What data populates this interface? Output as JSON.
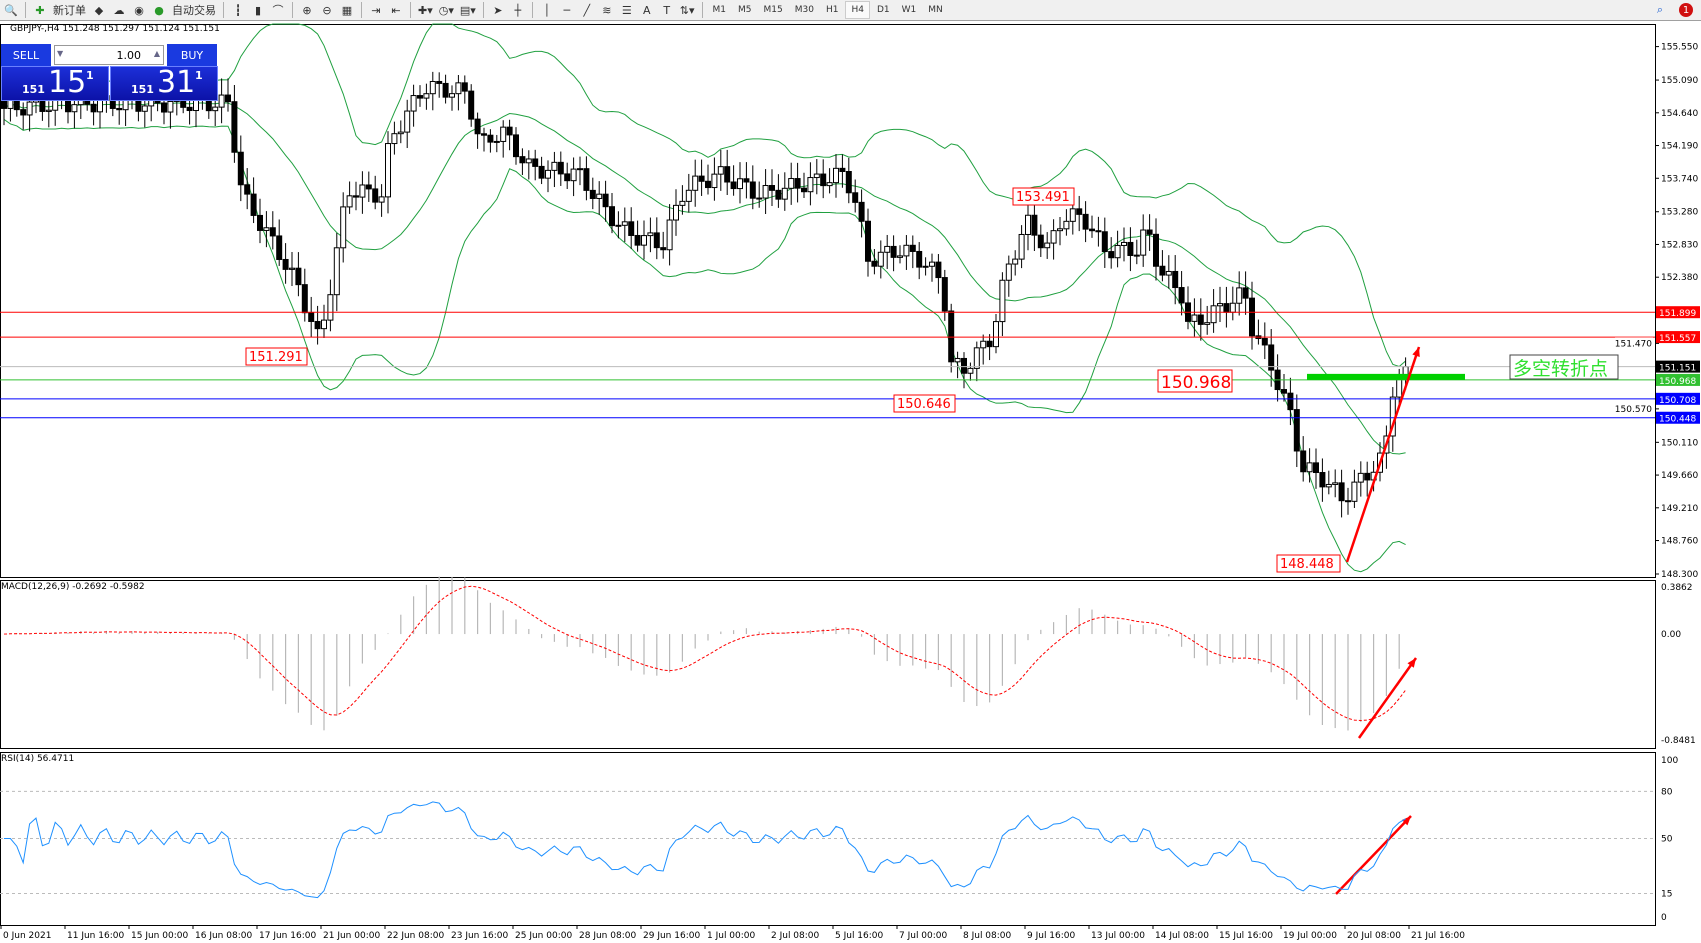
{
  "toolbar": {
    "new_order": "新订单",
    "auto_trading": "自动交易",
    "timeframes": [
      "M1",
      "M5",
      "M15",
      "M30",
      "H1",
      "H4",
      "D1",
      "W1",
      "MN"
    ],
    "active_timeframe": "H4",
    "notifications": "1",
    "icons": [
      "zoom-icon",
      "new-order-icon",
      "book-icon",
      "navigator-icon",
      "signal-icon",
      "auto-trading-icon",
      "bar-chart-icon",
      "candlestick-icon",
      "line-chart-icon",
      "zoom-in-icon",
      "zoom-out-icon",
      "tile-windows-icon",
      "chart-shift-icon",
      "autoscroll-icon",
      "indicators-icon",
      "periods-icon",
      "templates-icon",
      "cursor-icon",
      "crosshair-icon",
      "vertical-line-icon",
      "horizontal-line-icon",
      "trendline-icon",
      "fibo-icon",
      "fibo-channel-icon",
      "text-icon",
      "text-label-icon",
      "arrows-icon"
    ]
  },
  "header": {
    "symbol_line": "GBPJPY-,H4  151.248 151.297 151.124 151.151"
  },
  "trade_panel": {
    "sell": "SELL",
    "buy": "BUY",
    "lot": "1.00",
    "sell_small": "151",
    "sell_big": "15",
    "sell_sup": "1",
    "buy_small": "151",
    "buy_big": "31",
    "buy_sup": "1"
  },
  "colors": {
    "bull_bear": "#000000",
    "bands": "#20a040",
    "macd_signal": "#ff0000",
    "rsi": "#1e90ff",
    "resistance": "#ff0000",
    "pivot": "#00c000",
    "support": "#0000ff"
  },
  "chart_data": [
    {
      "type": "candlestick",
      "title": "GBPJPY-,H4",
      "ylim": [
        148.3,
        155.55
      ],
      "y_ticks": [
        "155.550",
        "155.090",
        "154.640",
        "154.190",
        "153.740",
        "153.280",
        "152.830",
        "152.380",
        "151.470",
        "150.570",
        "150.110",
        "149.660",
        "149.210",
        "148.760",
        "148.300"
      ],
      "x_ticks": [
        "0 Jun 2021",
        "11 Jun 16:00",
        "15 Jun 00:00",
        "16 Jun 08:00",
        "17 Jun 16:00",
        "21 Jun 00:00",
        "22 Jun 08:00",
        "23 Jun 16:00",
        "25 Jun 00:00",
        "28 Jun 08:00",
        "29 Jun 16:00",
        "1 Jul 00:00",
        "2 Jul 08:00",
        "5 Jul 16:00",
        "7 Jul 00:00",
        "8 Jul 08:00",
        "9 Jul 16:00",
        "13 Jul 00:00",
        "14 Jul 08:00",
        "15 Jul 16:00",
        "19 Jul 00:00",
        "20 Jul 08:00",
        "21 Jul 16:00"
      ],
      "close_keypoints": [
        [
          0,
          154.7
        ],
        [
          9,
          154.77
        ],
        [
          32,
          154.77
        ],
        [
          34,
          153.51
        ],
        [
          39,
          152.76
        ],
        [
          42,
          152.24
        ],
        [
          45,
          151.49
        ],
        [
          47,
          152.46
        ],
        [
          49,
          153.58
        ],
        [
          54,
          153.51
        ],
        [
          55,
          154.25
        ],
        [
          60,
          155.0
        ],
        [
          66,
          154.92
        ],
        [
          68,
          154.18
        ],
        [
          71,
          154.4
        ],
        [
          75,
          153.88
        ],
        [
          82,
          153.8
        ],
        [
          86,
          153.28
        ],
        [
          89,
          152.98
        ],
        [
          94,
          152.83
        ],
        [
          97,
          153.58
        ],
        [
          102,
          153.8
        ],
        [
          108,
          153.51
        ],
        [
          114,
          153.66
        ],
        [
          120,
          153.8
        ],
        [
          122,
          153.28
        ],
        [
          123,
          152.61
        ],
        [
          128,
          152.76
        ],
        [
          131,
          152.61
        ],
        [
          134,
          152.31
        ],
        [
          135,
          151.19
        ],
        [
          137,
          151.12
        ],
        [
          141,
          151.57
        ],
        [
          143,
          152.46
        ],
        [
          146,
          153.13
        ],
        [
          149,
          152.76
        ],
        [
          151,
          153.21
        ],
        [
          154,
          153.21
        ],
        [
          157,
          152.76
        ],
        [
          162,
          152.76
        ],
        [
          163,
          153.06
        ],
        [
          165,
          152.46
        ],
        [
          168,
          152.16
        ],
        [
          169,
          151.71
        ],
        [
          172,
          151.86
        ],
        [
          177,
          152.16
        ],
        [
          178,
          151.71
        ],
        [
          181,
          151.12
        ],
        [
          184,
          150.37
        ],
        [
          185,
          149.78
        ],
        [
          188,
          149.63
        ],
        [
          191,
          149.33
        ],
        [
          194,
          149.63
        ],
        [
          197,
          149.92
        ],
        [
          198,
          150.82
        ],
        [
          200,
          151.151
        ]
      ],
      "price_labels": {
        "low1": "151.291",
        "low2": "150.646",
        "high1": "153.491",
        "pivot": "150.968",
        "low3": "148.448"
      },
      "annotation_text": "多空转折点",
      "horizontal_lines": [
        {
          "price": 151.899,
          "label": "151.899",
          "color": "#ff0000"
        },
        {
          "price": 151.557,
          "label": "151.557",
          "color": "#ff0000"
        },
        {
          "price": 151.151,
          "label": "151.151",
          "color": "#000000"
        },
        {
          "price": 150.968,
          "label": "150.968",
          "color": "#30c030"
        },
        {
          "price": 150.708,
          "label": "150.708",
          "color": "#0000ff"
        },
        {
          "price": 150.448,
          "label": "150.448",
          "color": "#0000ff"
        }
      ]
    },
    {
      "type": "bar+line",
      "title": "MACD(12,26,9) -0.2692 -0.5982",
      "ylim": [
        -0.8481,
        0.3862
      ],
      "y_ticks": [
        "0.3862",
        "0.00",
        "-0.8481"
      ]
    },
    {
      "type": "line",
      "title": "RSI(14) 56.4711",
      "ylim": [
        0,
        100
      ],
      "y_ticks": [
        "100",
        "80",
        "50",
        "15",
        "0"
      ],
      "levels": [
        80,
        50,
        15
      ]
    }
  ]
}
